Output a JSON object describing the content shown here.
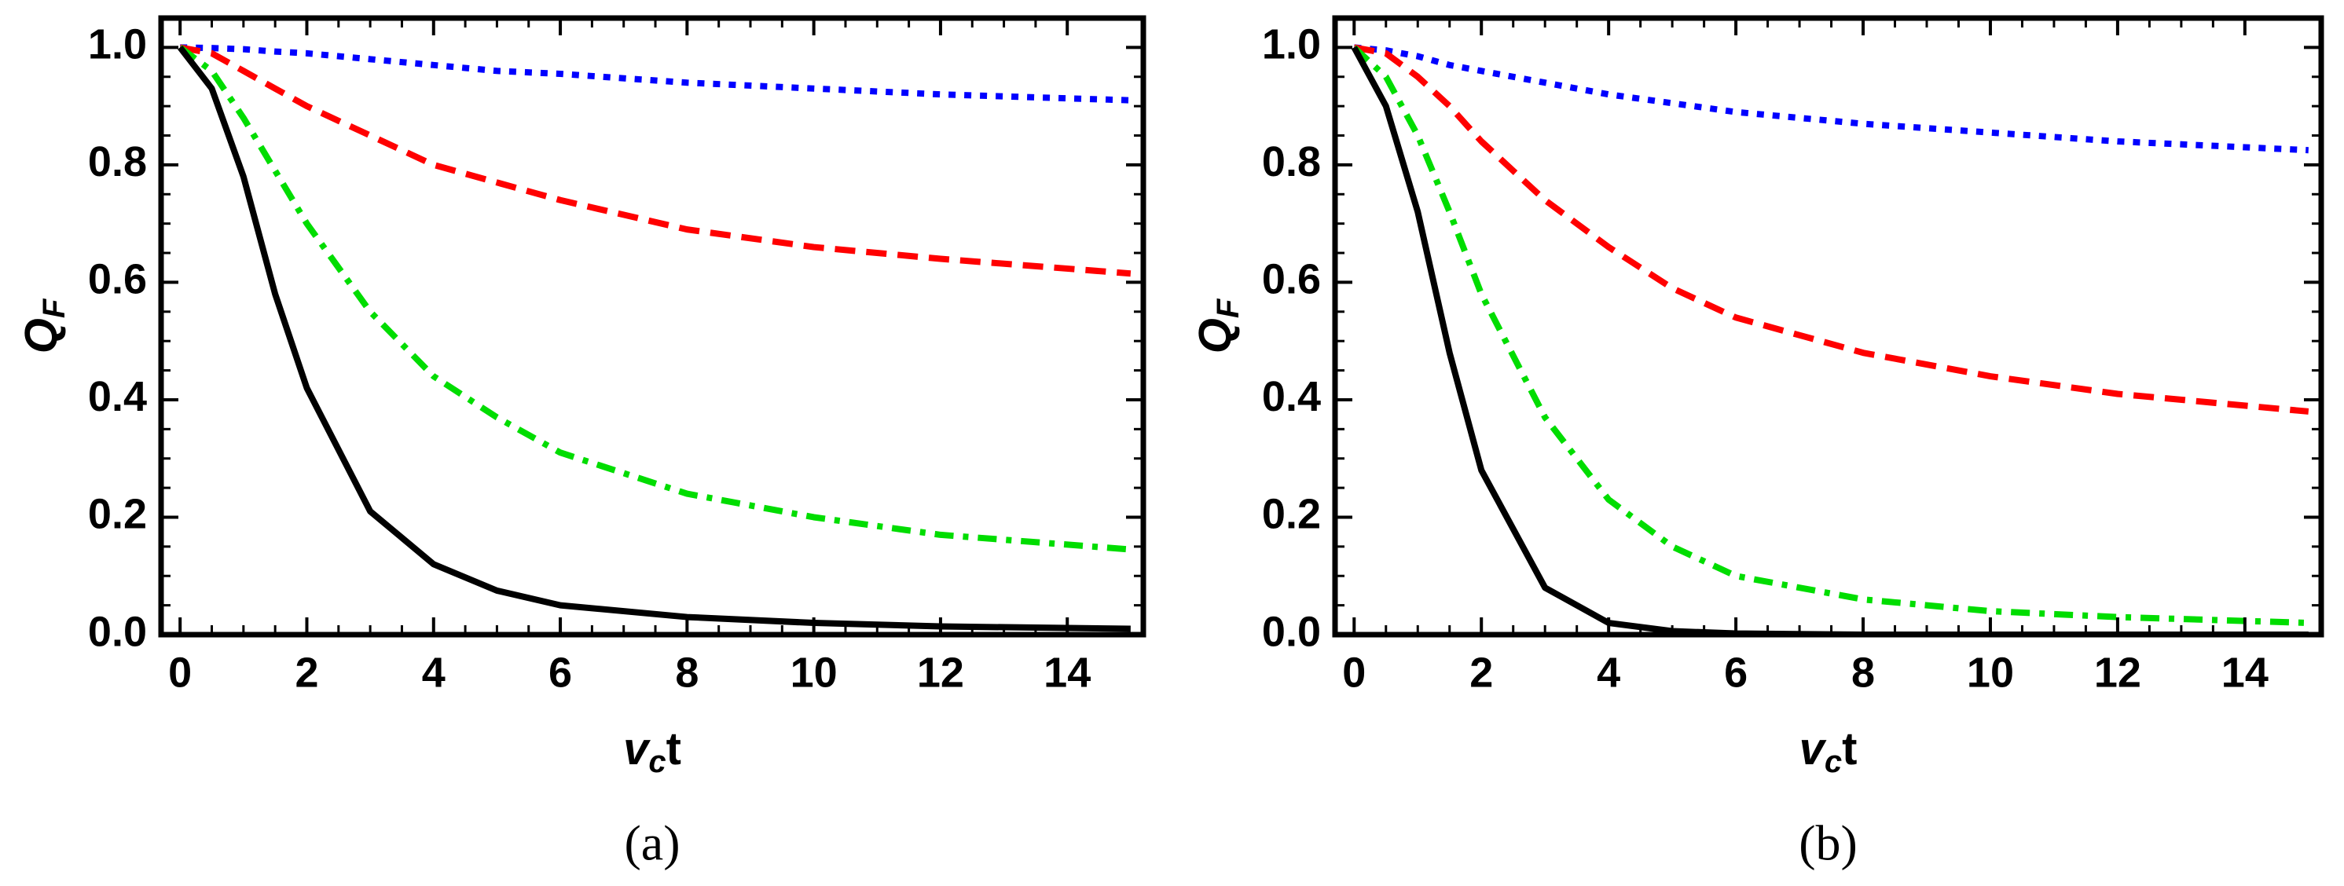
{
  "chart_data": [
    {
      "type": "line",
      "caption": "(a)",
      "xlabel": {
        "main": "v",
        "sub": "c",
        "tail": "t"
      },
      "ylabel": {
        "main": "Q",
        "sub": "F"
      },
      "xlim": [
        -0.3,
        15.2
      ],
      "ylim": [
        0,
        1.05
      ],
      "xticks": [
        0,
        2,
        4,
        6,
        8,
        10,
        12,
        14
      ],
      "yticks": [
        {
          "value": 0,
          "label": "0.0"
        },
        {
          "value": 0.2,
          "label": "0.2"
        },
        {
          "value": 0.4,
          "label": "0.4"
        },
        {
          "value": 0.6,
          "label": "0.6"
        },
        {
          "value": 0.8,
          "label": "0.8"
        },
        {
          "value": 1,
          "label": "1.0"
        }
      ],
      "x": [
        0,
        0.5,
        1,
        1.5,
        2,
        3,
        4,
        5,
        6,
        8,
        10,
        12,
        15
      ],
      "series": [
        {
          "color": "#0000ff",
          "dash": "dotted",
          "values": [
            1,
            0.999,
            0.997,
            0.993,
            0.99,
            0.98,
            0.97,
            0.96,
            0.955,
            0.94,
            0.93,
            0.92,
            0.91
          ]
        },
        {
          "color": "#ff0000",
          "dash": "dashed",
          "values": [
            1,
            0.99,
            0.96,
            0.93,
            0.9,
            0.85,
            0.8,
            0.77,
            0.74,
            0.69,
            0.66,
            0.64,
            0.615
          ]
        },
        {
          "color": "#00dd00",
          "dash": "dashdot",
          "values": [
            1,
            0.96,
            0.88,
            0.79,
            0.7,
            0.55,
            0.44,
            0.37,
            0.31,
            0.24,
            0.2,
            0.17,
            0.145
          ]
        },
        {
          "color": "#000000",
          "dash": "solid",
          "values": [
            1,
            0.93,
            0.78,
            0.58,
            0.42,
            0.21,
            0.12,
            0.075,
            0.05,
            0.03,
            0.02,
            0.014,
            0.01
          ]
        }
      ]
    },
    {
      "type": "line",
      "caption": "(b)",
      "xlabel": {
        "main": "v",
        "sub": "c",
        "tail": "t"
      },
      "ylabel": {
        "main": "Q",
        "sub": "F"
      },
      "xlim": [
        -0.3,
        15.2
      ],
      "ylim": [
        0,
        1.05
      ],
      "xticks": [
        0,
        2,
        4,
        6,
        8,
        10,
        12,
        14
      ],
      "yticks": [
        {
          "value": 0,
          "label": "0.0"
        },
        {
          "value": 0.2,
          "label": "0.2"
        },
        {
          "value": 0.4,
          "label": "0.4"
        },
        {
          "value": 0.6,
          "label": "0.6"
        },
        {
          "value": 0.8,
          "label": "0.8"
        },
        {
          "value": 1,
          "label": "1.0"
        }
      ],
      "x": [
        0,
        0.5,
        1,
        1.5,
        2,
        3,
        4,
        5,
        6,
        8,
        10,
        12,
        15
      ],
      "series": [
        {
          "color": "#0000ff",
          "dash": "dotted",
          "values": [
            1,
            0.995,
            0.985,
            0.97,
            0.96,
            0.94,
            0.92,
            0.905,
            0.89,
            0.87,
            0.855,
            0.84,
            0.825
          ]
        },
        {
          "color": "#ff0000",
          "dash": "dashed",
          "values": [
            1,
            0.99,
            0.95,
            0.9,
            0.84,
            0.74,
            0.66,
            0.59,
            0.54,
            0.48,
            0.44,
            0.41,
            0.38
          ]
        },
        {
          "color": "#00dd00",
          "dash": "dashdot",
          "values": [
            1,
            0.95,
            0.85,
            0.72,
            0.58,
            0.37,
            0.23,
            0.15,
            0.1,
            0.06,
            0.04,
            0.03,
            0.02
          ]
        },
        {
          "color": "#000000",
          "dash": "solid",
          "values": [
            1,
            0.9,
            0.72,
            0.48,
            0.28,
            0.08,
            0.02,
            0.006,
            0.002,
            0,
            0,
            0,
            0
          ]
        }
      ]
    }
  ]
}
